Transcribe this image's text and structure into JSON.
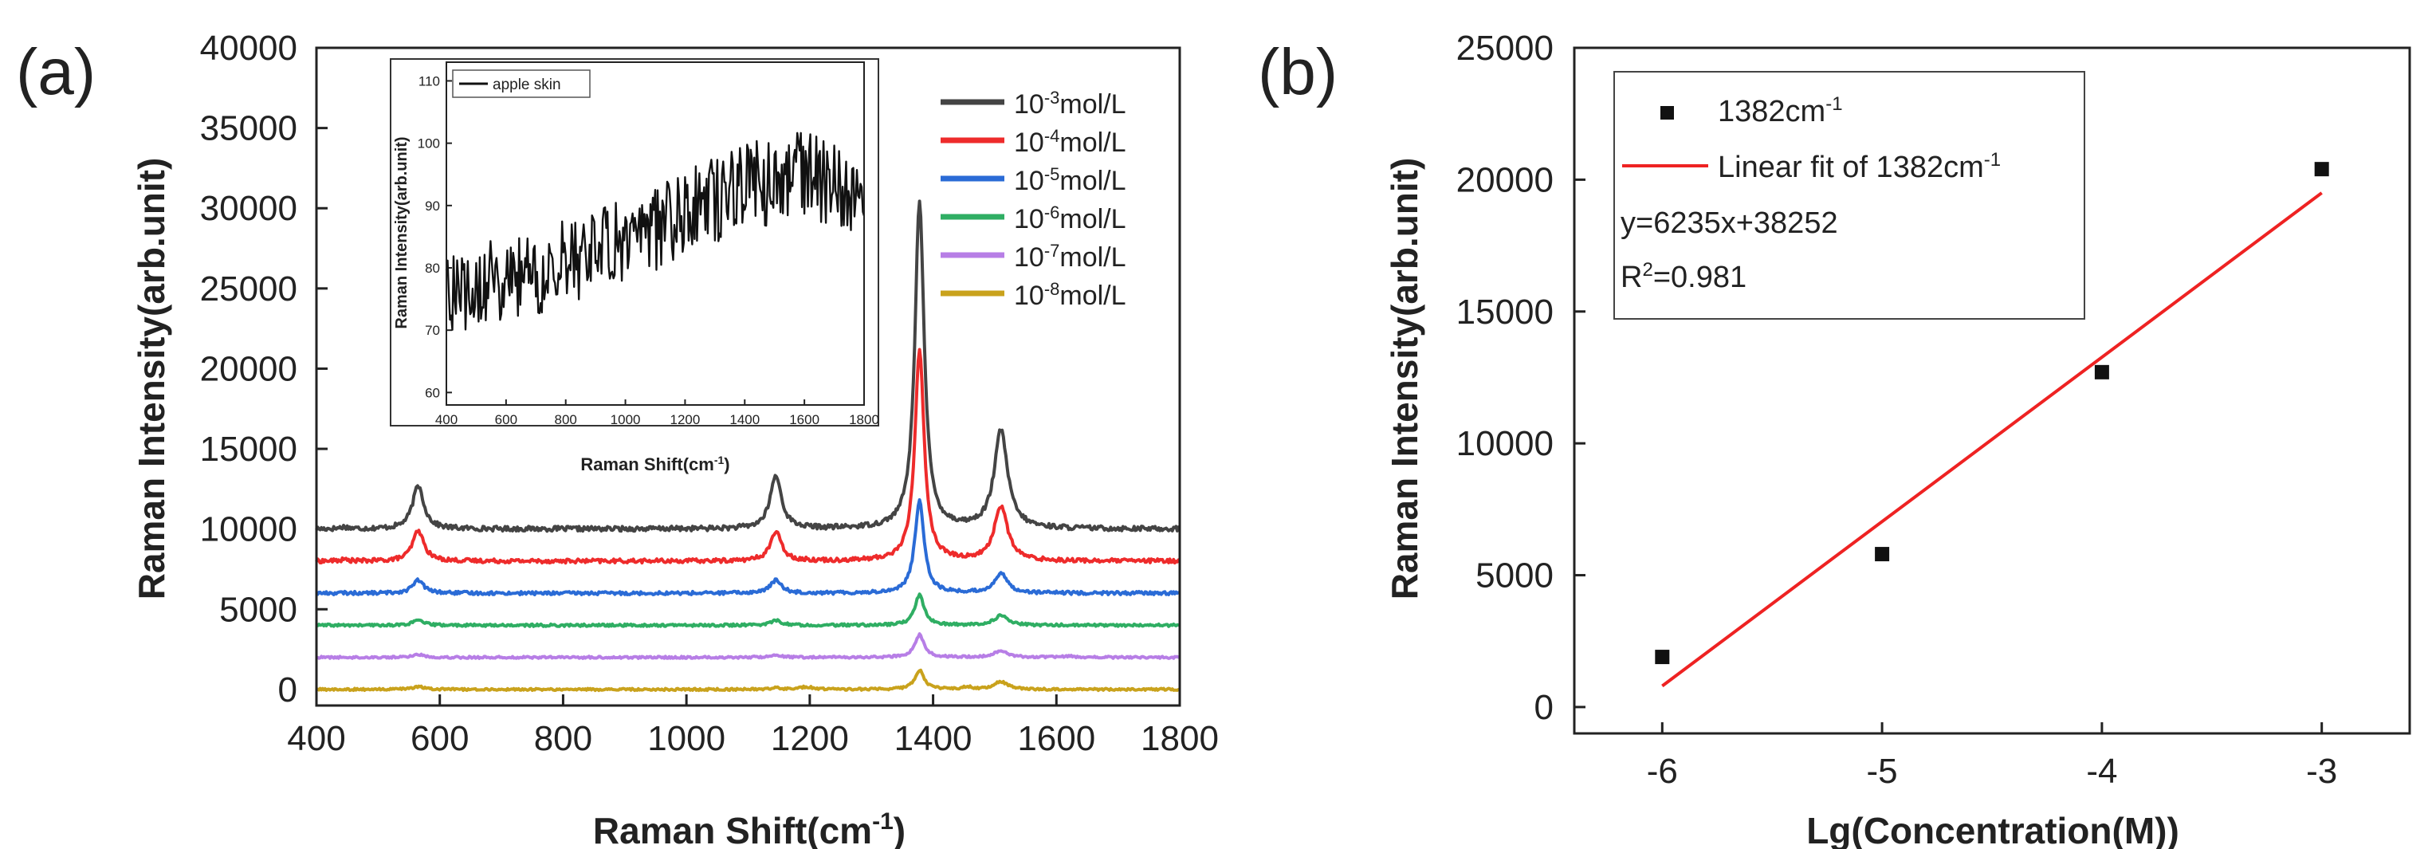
{
  "figure": {
    "panel_a_label": "(a)",
    "panel_b_label": "(b)"
  },
  "chart_data": [
    {
      "type": "line",
      "title": "",
      "xlabel": "Raman Shift(cm",
      "xlabel_sup": "-1",
      "xlabel_end": ")",
      "ylabel": "Raman Intensity(arb.unit)",
      "xlim": [
        400,
        1800
      ],
      "ylim": [
        -1000,
        40000
      ],
      "xticks": [
        400,
        600,
        800,
        1000,
        1200,
        1400,
        1600,
        1800
      ],
      "yticks": [
        0,
        5000,
        10000,
        15000,
        20000,
        25000,
        30000,
        35000,
        40000
      ],
      "legend_position": "top-right",
      "peaks": [
        {
          "center": 445,
          "width": 8,
          "weights": [
            0.12,
            0.1,
            0.04,
            0.0,
            0.0,
            0.0
          ]
        },
        {
          "center": 565,
          "width": 11,
          "weights": [
            1.0,
            1.0,
            1.0,
            1.0,
            0.6,
            0.6
          ]
        },
        {
          "center": 1145,
          "width": 11,
          "weights": [
            1.0,
            1.0,
            1.0,
            1.0,
            0.5,
            0.3
          ]
        },
        {
          "center": 1195,
          "width": 12,
          "weights": [
            0.0,
            0.0,
            0.0,
            0.0,
            0.0,
            0.4
          ]
        },
        {
          "center": 1378,
          "width": 9,
          "weights": [
            1.0,
            1.0,
            1.0,
            1.0,
            1.0,
            1.0
          ]
        },
        {
          "center": 1455,
          "width": 10,
          "weights": [
            0.0,
            0.0,
            0.0,
            0.0,
            0.0,
            0.3
          ]
        },
        {
          "center": 1510,
          "width": 13,
          "weights": [
            1.0,
            1.0,
            1.0,
            1.0,
            0.7,
            0.7
          ]
        },
        {
          "center": 1620,
          "width": 10,
          "weights": [
            0.0,
            0.0,
            0.0,
            0.0,
            0.2,
            0.0
          ]
        }
      ],
      "series": [
        {
          "name": "10-3mol/L",
          "label_base": "10",
          "label_exp": "-3",
          "label_unit": "mol/L",
          "color": "#444444",
          "baseline": 10000,
          "noise": 300,
          "peak_heights": [
            1000,
            2700,
            3300,
            0,
            20500,
            0,
            6100,
            0
          ]
        },
        {
          "name": "10-4mol/L",
          "label_base": "10",
          "label_exp": "-4",
          "label_unit": "mol/L",
          "color": "#ee2b2b",
          "baseline": 8000,
          "noise": 250,
          "peak_heights": [
            800,
            1900,
            1800,
            0,
            13200,
            0,
            3400,
            0
          ]
        },
        {
          "name": "10-5mol/L",
          "label_base": "10",
          "label_exp": "-5",
          "label_unit": "mol/L",
          "color": "#2a6bd6",
          "baseline": 6000,
          "noise": 200,
          "peak_heights": [
            300,
            800,
            800,
            0,
            5800,
            0,
            1200,
            0
          ]
        },
        {
          "name": "10-6mol/L",
          "label_base": "10",
          "label_exp": "-6",
          "label_unit": "mol/L",
          "color": "#2fae63",
          "baseline": 4000,
          "noise": 150,
          "peak_heights": [
            0,
            300,
            300,
            0,
            1900,
            0,
            600,
            0
          ]
        },
        {
          "name": "10-7mol/L",
          "label_base": "10",
          "label_exp": "-7",
          "label_unit": "mol/L",
          "color": "#b77ee6",
          "baseline": 2000,
          "noise": 130,
          "peak_heights": [
            0,
            300,
            300,
            0,
            1400,
            0,
            600,
            300
          ]
        },
        {
          "name": "10-8mol/L",
          "label_base": "10",
          "label_exp": "-8",
          "label_unit": "mol/L",
          "color": "#c9a21c",
          "baseline": 0,
          "noise": 130,
          "peak_heights": [
            0,
            300,
            300,
            400,
            1200,
            500,
            700,
            0
          ]
        }
      ],
      "inset": {
        "type": "line",
        "title": "",
        "xlabel": "Raman Shift(cm",
        "xlabel_sup": "-1",
        "xlabel_end": ")",
        "ylabel": "Raman Intensity(arb.unit)",
        "xlim": [
          400,
          1800
        ],
        "ylim": [
          58,
          113
        ],
        "xticks": [
          400,
          600,
          800,
          1000,
          1200,
          1400,
          1600,
          1800
        ],
        "yticks": [
          60,
          70,
          80,
          90,
          100,
          110
        ],
        "legend": "apple skin",
        "color": "#111111",
        "trend": [
          [
            400,
            76
          ],
          [
            600,
            78
          ],
          [
            800,
            81
          ],
          [
            1000,
            84
          ],
          [
            1200,
            89
          ],
          [
            1400,
            93
          ],
          [
            1600,
            95
          ],
          [
            1800,
            92
          ]
        ],
        "noise": 7
      }
    },
    {
      "type": "scatter",
      "title": "",
      "xlabel": "Lg(Concentration(M))",
      "ylabel": "Raman Intensity(arb.unit)",
      "xlim": [
        -6.4,
        -2.6
      ],
      "ylim": [
        -1000,
        25000
      ],
      "xticks": [
        -6,
        -5,
        -4,
        -3
      ],
      "yticks": [
        0,
        5000,
        10000,
        15000,
        20000,
        25000
      ],
      "legend_position": "top-left",
      "points": {
        "name": "1382cm-1",
        "label_base": "1382cm",
        "label_exp": "-1",
        "x": [
          -6,
          -5,
          -4,
          -3
        ],
        "y": [
          1900,
          5800,
          12700,
          20400
        ]
      },
      "fit": {
        "name": "Linear fit of 1382cm-1",
        "label_base": "Linear fit of 1382cm",
        "label_exp": "-1",
        "color": "#ee2222",
        "x_range": [
          -6,
          -3
        ],
        "y_range": [
          800,
          19500
        ]
      },
      "equation": "y=6235x+38252",
      "r2_label_base": "R",
      "r2_label_exp": "2",
      "r2_label_value": "=0.981"
    }
  ]
}
